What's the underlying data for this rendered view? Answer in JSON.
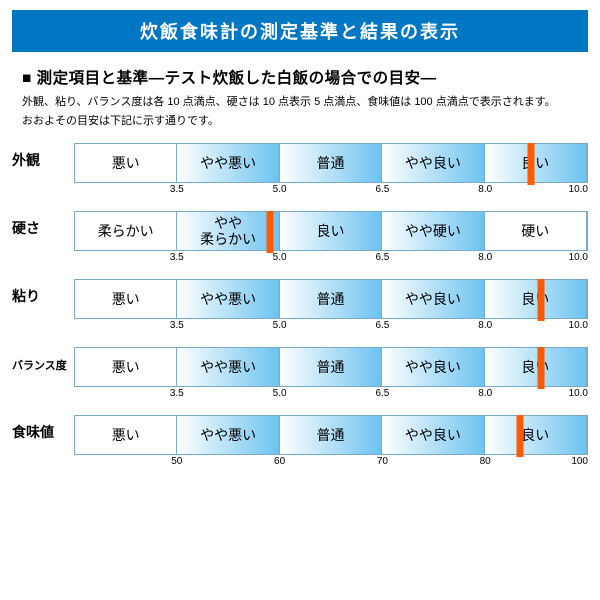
{
  "colors": {
    "title_bg": "#0077c2",
    "marker": "#ff5a00",
    "border": "#7aa9c9",
    "grad_start": "#ffffff",
    "grad_end": "#6cc3f0",
    "white": "#ffffff"
  },
  "title": "炊飯食味計の測定基準と結果の表示",
  "subtitle": "■ 測定項目と基準―テスト炊飯した白飯の場合での目安―",
  "desc1": "外観、粘り、バランス度は各 10 点満点、硬さは 10 点表示 5 点満点、食味値は 100 点満点で表示されます。",
  "desc2": "おおよその目安は下記に示す通りです。",
  "rows": [
    {
      "label": "外観",
      "label_small": false,
      "segs": [
        {
          "text": "悪い",
          "fill": "white"
        },
        {
          "text": "やや悪い",
          "fill": "grad"
        },
        {
          "text": "普通",
          "fill": "grad"
        },
        {
          "text": "やや良い",
          "fill": "grad"
        },
        {
          "text": "良い",
          "fill": "grad"
        }
      ],
      "ticks": [
        "3.5",
        "5.0",
        "6.5",
        "8.0",
        "10.0"
      ],
      "marker_pct": 89
    },
    {
      "label": "硬さ",
      "label_small": false,
      "segs": [
        {
          "text": "柔らかい",
          "fill": "white"
        },
        {
          "text": "やや\n柔らかい",
          "fill": "grad"
        },
        {
          "text": "良い",
          "fill": "grad"
        },
        {
          "text": "やや硬い",
          "fill": "grad"
        },
        {
          "text": "硬い",
          "fill": "white"
        }
      ],
      "ticks": [
        "3.5",
        "5.0",
        "6.5",
        "8.0",
        "10.0"
      ],
      "marker_pct": 38
    },
    {
      "label": "粘り",
      "label_small": false,
      "segs": [
        {
          "text": "悪い",
          "fill": "white"
        },
        {
          "text": "やや悪い",
          "fill": "grad"
        },
        {
          "text": "普通",
          "fill": "grad"
        },
        {
          "text": "やや良い",
          "fill": "grad"
        },
        {
          "text": "良い",
          "fill": "grad"
        }
      ],
      "ticks": [
        "3.5",
        "5.0",
        "6.5",
        "8.0",
        "10.0"
      ],
      "marker_pct": 91
    },
    {
      "label": "バランス度",
      "label_small": true,
      "segs": [
        {
          "text": "悪い",
          "fill": "white"
        },
        {
          "text": "やや悪い",
          "fill": "grad"
        },
        {
          "text": "普通",
          "fill": "grad"
        },
        {
          "text": "やや良い",
          "fill": "grad"
        },
        {
          "text": "良い",
          "fill": "grad"
        }
      ],
      "ticks": [
        "3.5",
        "5.0",
        "6.5",
        "8.0",
        "10.0"
      ],
      "marker_pct": 91
    },
    {
      "label": "食味値",
      "label_small": false,
      "segs": [
        {
          "text": "悪い",
          "fill": "white"
        },
        {
          "text": "やや悪い",
          "fill": "grad"
        },
        {
          "text": "普通",
          "fill": "grad"
        },
        {
          "text": "やや良い",
          "fill": "grad"
        },
        {
          "text": "良い",
          "fill": "grad"
        }
      ],
      "ticks": [
        "50",
        "60",
        "70",
        "80",
        "100"
      ],
      "marker_pct": 87
    }
  ]
}
